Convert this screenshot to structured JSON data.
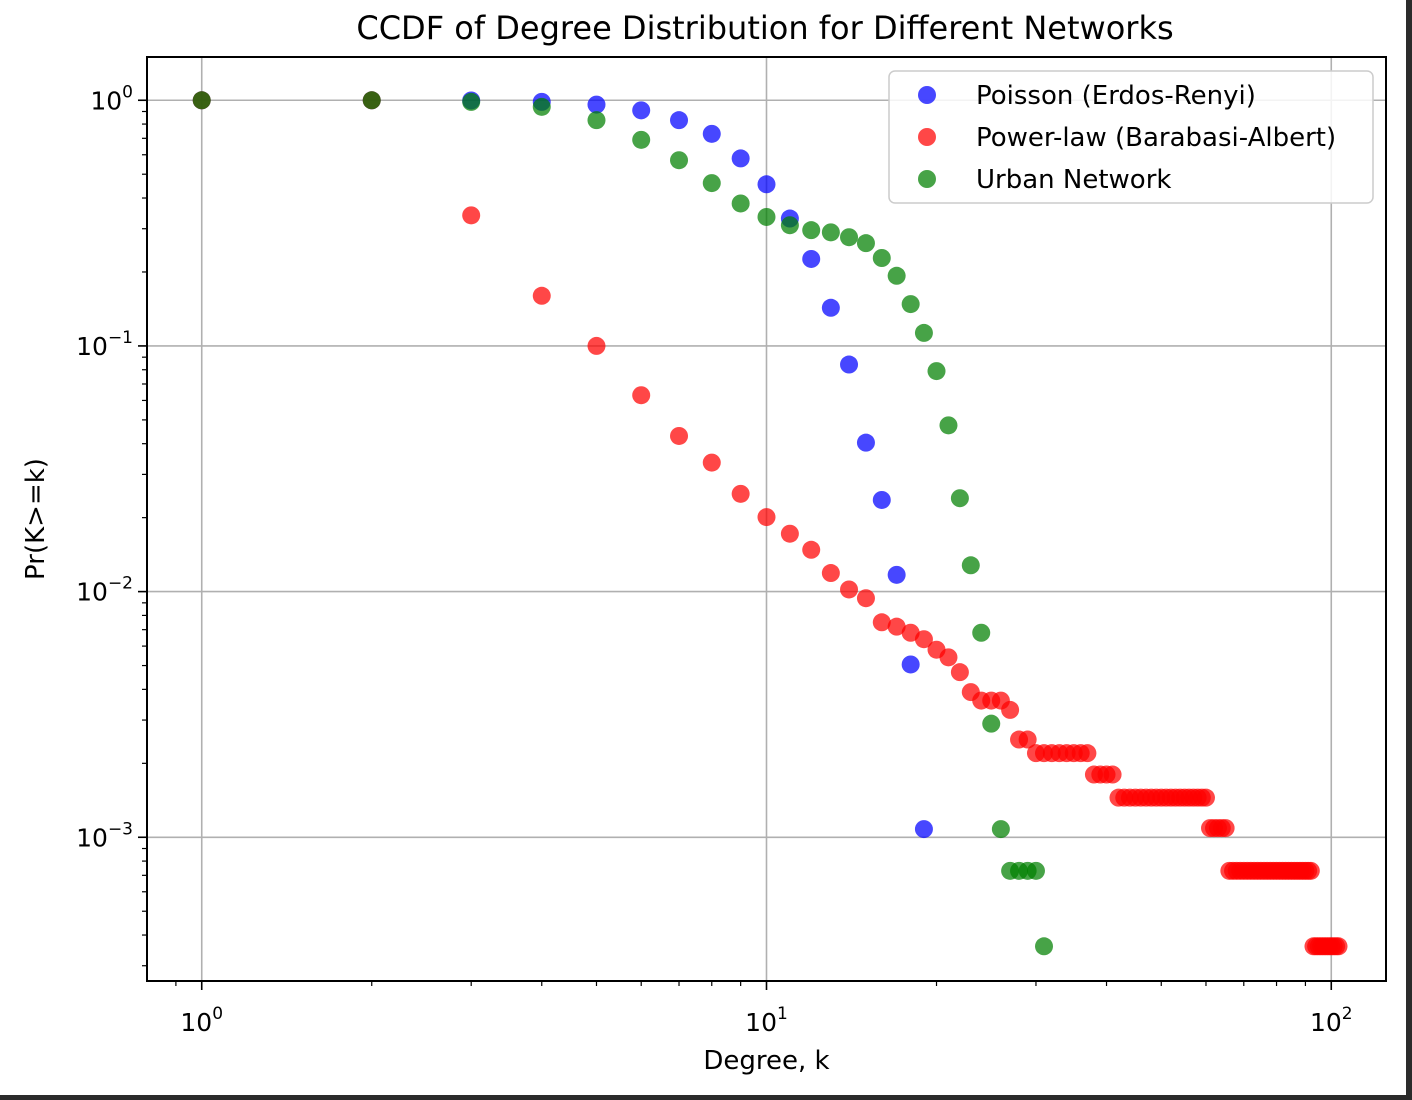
{
  "chart_data": {
    "type": "scatter",
    "title": "CCDF of Degree Distribution for Different Networks",
    "xlabel": "Degree, k",
    "ylabel": "Pr(K>=k)",
    "xscale": "log",
    "yscale": "log",
    "xlim": [
      0.8,
      125
    ],
    "ylim": [
      0.00026,
      1.5
    ],
    "grid": true,
    "legend_position": "top-right",
    "x_ticks": [
      {
        "base": "10",
        "exp": "0",
        "value": 1
      },
      {
        "base": "10",
        "exp": "1",
        "value": 10
      },
      {
        "base": "10",
        "exp": "2",
        "value": 100
      }
    ],
    "y_ticks": [
      {
        "base": "10",
        "exp": "0",
        "value": 1
      },
      {
        "base": "10",
        "exp": "−1",
        "value": 0.1
      },
      {
        "base": "10",
        "exp": "−2",
        "value": 0.01
      },
      {
        "base": "10",
        "exp": "−3",
        "value": 0.001
      }
    ],
    "series": [
      {
        "name": "Poisson (Erdos-Renyi)",
        "color": "#0000ff",
        "x": [
          1,
          2,
          3,
          4,
          5,
          6,
          7,
          8,
          9,
          10,
          11,
          12,
          13,
          14,
          15,
          16,
          17,
          18,
          19
        ],
        "y": [
          1.0,
          1.0,
          0.998,
          0.985,
          0.96,
          0.91,
          0.83,
          0.73,
          0.58,
          0.455,
          0.33,
          0.226,
          0.143,
          0.084,
          0.0404,
          0.0236,
          0.0117,
          0.00505,
          0.00108
        ]
      },
      {
        "name": "Power-law (Barabasi-Albert)",
        "color": "#ff0000",
        "x": [
          1,
          2,
          3,
          4,
          5,
          6,
          7,
          8,
          9,
          10,
          11,
          12,
          13,
          14,
          15,
          16,
          17,
          18,
          19,
          20,
          21,
          22,
          23,
          24,
          25,
          26,
          27,
          28,
          29,
          30,
          31,
          32,
          33,
          34,
          35,
          36,
          37,
          38,
          39,
          40,
          41,
          42,
          43,
          44,
          45,
          46,
          47,
          48,
          49,
          50,
          51,
          52,
          53,
          54,
          55,
          56,
          57,
          58,
          59,
          60,
          61,
          62,
          63,
          64,
          65,
          66,
          67,
          68,
          69,
          70,
          71,
          72,
          73,
          74,
          75,
          76,
          77,
          78,
          79,
          80,
          81,
          82,
          83,
          84,
          85,
          86,
          87,
          88,
          89,
          90,
          91,
          92,
          93,
          94,
          95,
          96,
          97,
          98,
          99,
          100,
          101,
          102,
          103
        ],
        "y": [
          1.0,
          1.0,
          0.34,
          0.16,
          0.1,
          0.063,
          0.043,
          0.0335,
          0.025,
          0.0201,
          0.0172,
          0.0148,
          0.0119,
          0.0102,
          0.0094,
          0.0075,
          0.0072,
          0.0068,
          0.0064,
          0.0058,
          0.0054,
          0.0047,
          0.0039,
          0.0036,
          0.0036,
          0.0036,
          0.0033,
          0.0025,
          0.0025,
          0.0022,
          0.0022,
          0.0022,
          0.0022,
          0.0022,
          0.0022,
          0.0022,
          0.0022,
          0.0018,
          0.0018,
          0.0018,
          0.0018,
          0.00145,
          0.00145,
          0.00145,
          0.00145,
          0.00145,
          0.00145,
          0.00145,
          0.00145,
          0.00145,
          0.00145,
          0.00145,
          0.00145,
          0.00145,
          0.00145,
          0.00145,
          0.00145,
          0.00145,
          0.00145,
          0.00145,
          0.00109,
          0.00109,
          0.00109,
          0.00109,
          0.00109,
          0.00073,
          0.00073,
          0.00073,
          0.00073,
          0.00073,
          0.00073,
          0.00073,
          0.00073,
          0.00073,
          0.00073,
          0.00073,
          0.00073,
          0.00073,
          0.00073,
          0.00073,
          0.00073,
          0.00073,
          0.00073,
          0.00073,
          0.00073,
          0.00073,
          0.00073,
          0.00073,
          0.00073,
          0.00073,
          0.00073,
          0.00073,
          0.00036,
          0.00036,
          0.00036,
          0.00036,
          0.00036,
          0.00036,
          0.00036,
          0.00036,
          0.00036,
          0.00036,
          0.00036
        ],
        "x_trim_note": ""
      },
      {
        "name": "Urban Network",
        "color": "#008000",
        "x": [
          1,
          2,
          3,
          4,
          5,
          6,
          7,
          8,
          9,
          10,
          11,
          12,
          13,
          14,
          15,
          16,
          17,
          18,
          19,
          20,
          21,
          22,
          23,
          24,
          25,
          26,
          27,
          28,
          29,
          30,
          31
        ],
        "y": [
          1.0,
          1.0,
          0.985,
          0.94,
          0.83,
          0.69,
          0.57,
          0.46,
          0.38,
          0.335,
          0.31,
          0.296,
          0.29,
          0.277,
          0.262,
          0.228,
          0.193,
          0.148,
          0.113,
          0.079,
          0.0475,
          0.024,
          0.0128,
          0.0068,
          0.0029,
          0.00108,
          0.00073,
          0.00073,
          0.00073,
          0.00073,
          0.00036
        ]
      }
    ]
  }
}
